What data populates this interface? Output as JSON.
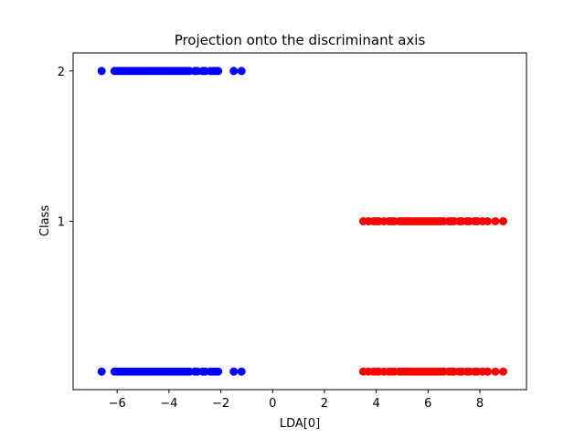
{
  "chart_data": {
    "type": "scatter",
    "title": "Projection onto the discriminant axis",
    "xlabel": "LDA[0]",
    "ylabel": "Class",
    "xlim": [
      -7.7,
      9.8
    ],
    "ylim": [
      -0.12,
      2.12
    ],
    "xticks": [
      -6,
      -4,
      -2,
      0,
      2,
      4,
      6,
      8
    ],
    "xtick_labels": [
      "−6",
      "−4",
      "−2",
      "0",
      "2",
      "4",
      "6",
      "8"
    ],
    "yticks": [
      1,
      2
    ],
    "ytick_labels": [
      "1",
      "2"
    ],
    "grid": false,
    "legend": "none",
    "series": [
      {
        "color": "#0000ff",
        "x": [
          -6.6,
          -6.1,
          -6.0,
          -5.9,
          -5.8,
          -5.7,
          -5.6,
          -5.5,
          -5.4,
          -5.3,
          -5.2,
          -5.1,
          -5.0,
          -4.9,
          -4.8,
          -4.7,
          -4.6,
          -4.5,
          -4.4,
          -4.3,
          -4.2,
          -4.1,
          -4.0,
          -3.9,
          -3.8,
          -3.7,
          -3.6,
          -3.5,
          -3.4,
          -3.3,
          -3.2,
          -3.0,
          -2.9,
          -2.7,
          -2.6,
          -2.4,
          -2.3,
          -2.2,
          -2.1,
          -1.5,
          -1.2
        ],
        "y_class": 2
      },
      {
        "color": "#0000ff",
        "x": [
          -6.6,
          -6.1,
          -6.0,
          -5.9,
          -5.8,
          -5.7,
          -5.6,
          -5.5,
          -5.4,
          -5.3,
          -5.2,
          -5.1,
          -5.0,
          -4.9,
          -4.8,
          -4.7,
          -4.6,
          -4.5,
          -4.4,
          -4.3,
          -4.2,
          -4.1,
          -4.0,
          -3.9,
          -3.8,
          -3.7,
          -3.6,
          -3.5,
          -3.4,
          -3.3,
          -3.2,
          -3.0,
          -2.9,
          -2.7,
          -2.6,
          -2.4,
          -2.3,
          -2.2,
          -2.1,
          -1.5,
          -1.2
        ],
        "y": 0
      },
      {
        "color": "#ff0000",
        "x": [
          3.5,
          3.7,
          3.9,
          4.0,
          4.1,
          4.3,
          4.5,
          4.6,
          4.7,
          4.9,
          5.0,
          5.1,
          5.2,
          5.3,
          5.4,
          5.5,
          5.6,
          5.7,
          5.8,
          5.9,
          6.0,
          6.1,
          6.2,
          6.3,
          6.4,
          6.5,
          6.6,
          6.8,
          6.9,
          7.0,
          7.2,
          7.3,
          7.5,
          7.6,
          7.8,
          7.9,
          8.1,
          8.3,
          8.6,
          8.9
        ],
        "y_class": 1
      },
      {
        "color": "#ff0000",
        "x": [
          3.5,
          3.7,
          3.9,
          4.0,
          4.1,
          4.3,
          4.5,
          4.6,
          4.7,
          4.9,
          5.0,
          5.1,
          5.2,
          5.3,
          5.4,
          5.5,
          5.6,
          5.7,
          5.8,
          5.9,
          6.0,
          6.1,
          6.2,
          6.3,
          6.4,
          6.5,
          6.6,
          6.8,
          6.9,
          7.0,
          7.2,
          7.3,
          7.5,
          7.6,
          7.8,
          7.9,
          8.1,
          8.3,
          8.6,
          8.9
        ],
        "y": 0
      }
    ]
  }
}
